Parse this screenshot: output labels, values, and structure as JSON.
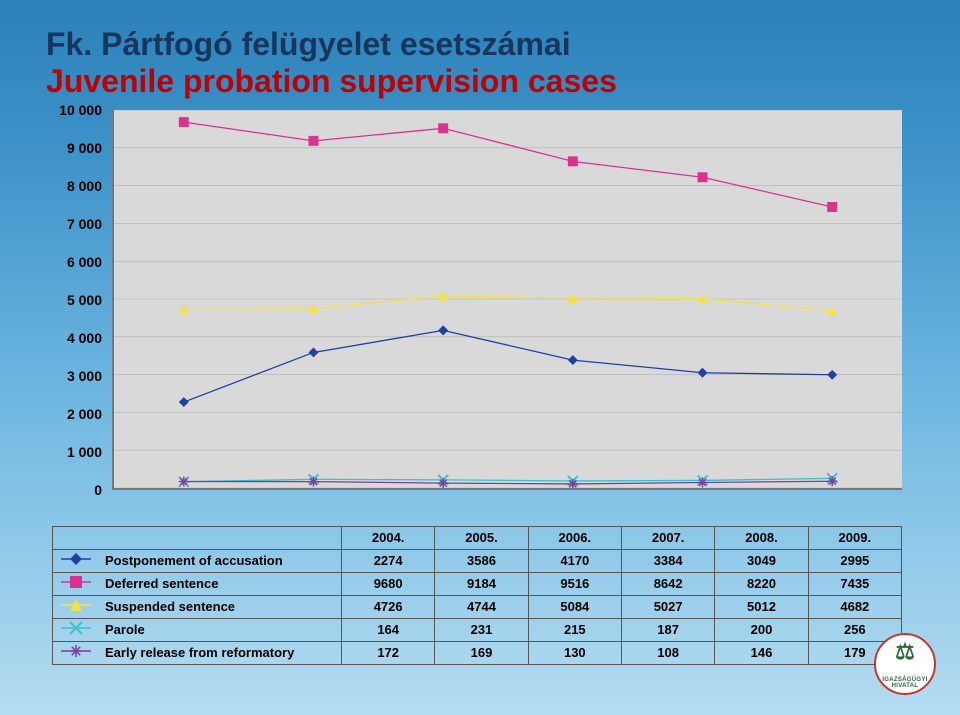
{
  "title_line1": "Fk. Pártfogó felügyelet esetszámai",
  "title_line2": "Juvenile probation supervision cases",
  "title_color1": "#17365d",
  "title_color2": "#c00000",
  "chart": {
    "type": "line",
    "plot_background": "#d9d9d9",
    "grid_color": "#b0b0b0",
    "axis_color": "#777777",
    "x_categories": [
      "2004.",
      "2005.",
      "2006.",
      "2007.",
      "2008.",
      "2009."
    ],
    "y_min": 0,
    "y_max": 10000,
    "y_tick_step": 1000,
    "y_tick_labels": [
      "0",
      "1 000",
      "2 000",
      "3 000",
      "4 000",
      "5 000",
      "6 000",
      "7 000",
      "8 000",
      "9 000",
      "10 000"
    ],
    "line_width": 1.3,
    "marker_size": 5,
    "series": [
      {
        "name": "Postponement of accusation",
        "color": "#2140a4",
        "marker": "diamond",
        "values": [
          2274,
          3586,
          4170,
          3384,
          3049,
          2995
        ]
      },
      {
        "name": "Deferred sentence",
        "color": "#d9338e",
        "marker": "square",
        "values": [
          9680,
          9184,
          9516,
          8642,
          8220,
          7435
        ]
      },
      {
        "name": "Suspended sentence",
        "color": "#f2e24a",
        "marker": "triangle",
        "values": [
          4726,
          4744,
          5084,
          5027,
          5012,
          4682
        ]
      },
      {
        "name": "Parole",
        "color": "#3cc1c8",
        "marker": "cross",
        "values": [
          164,
          231,
          215,
          187,
          200,
          256
        ]
      },
      {
        "name": "Early release from reformatory",
        "color": "#7a3fa0",
        "marker": "star",
        "values": [
          172,
          169,
          130,
          108,
          146,
          179
        ]
      }
    ]
  },
  "logo_text": "IGAZSÁGÜGYI HIVATAL"
}
